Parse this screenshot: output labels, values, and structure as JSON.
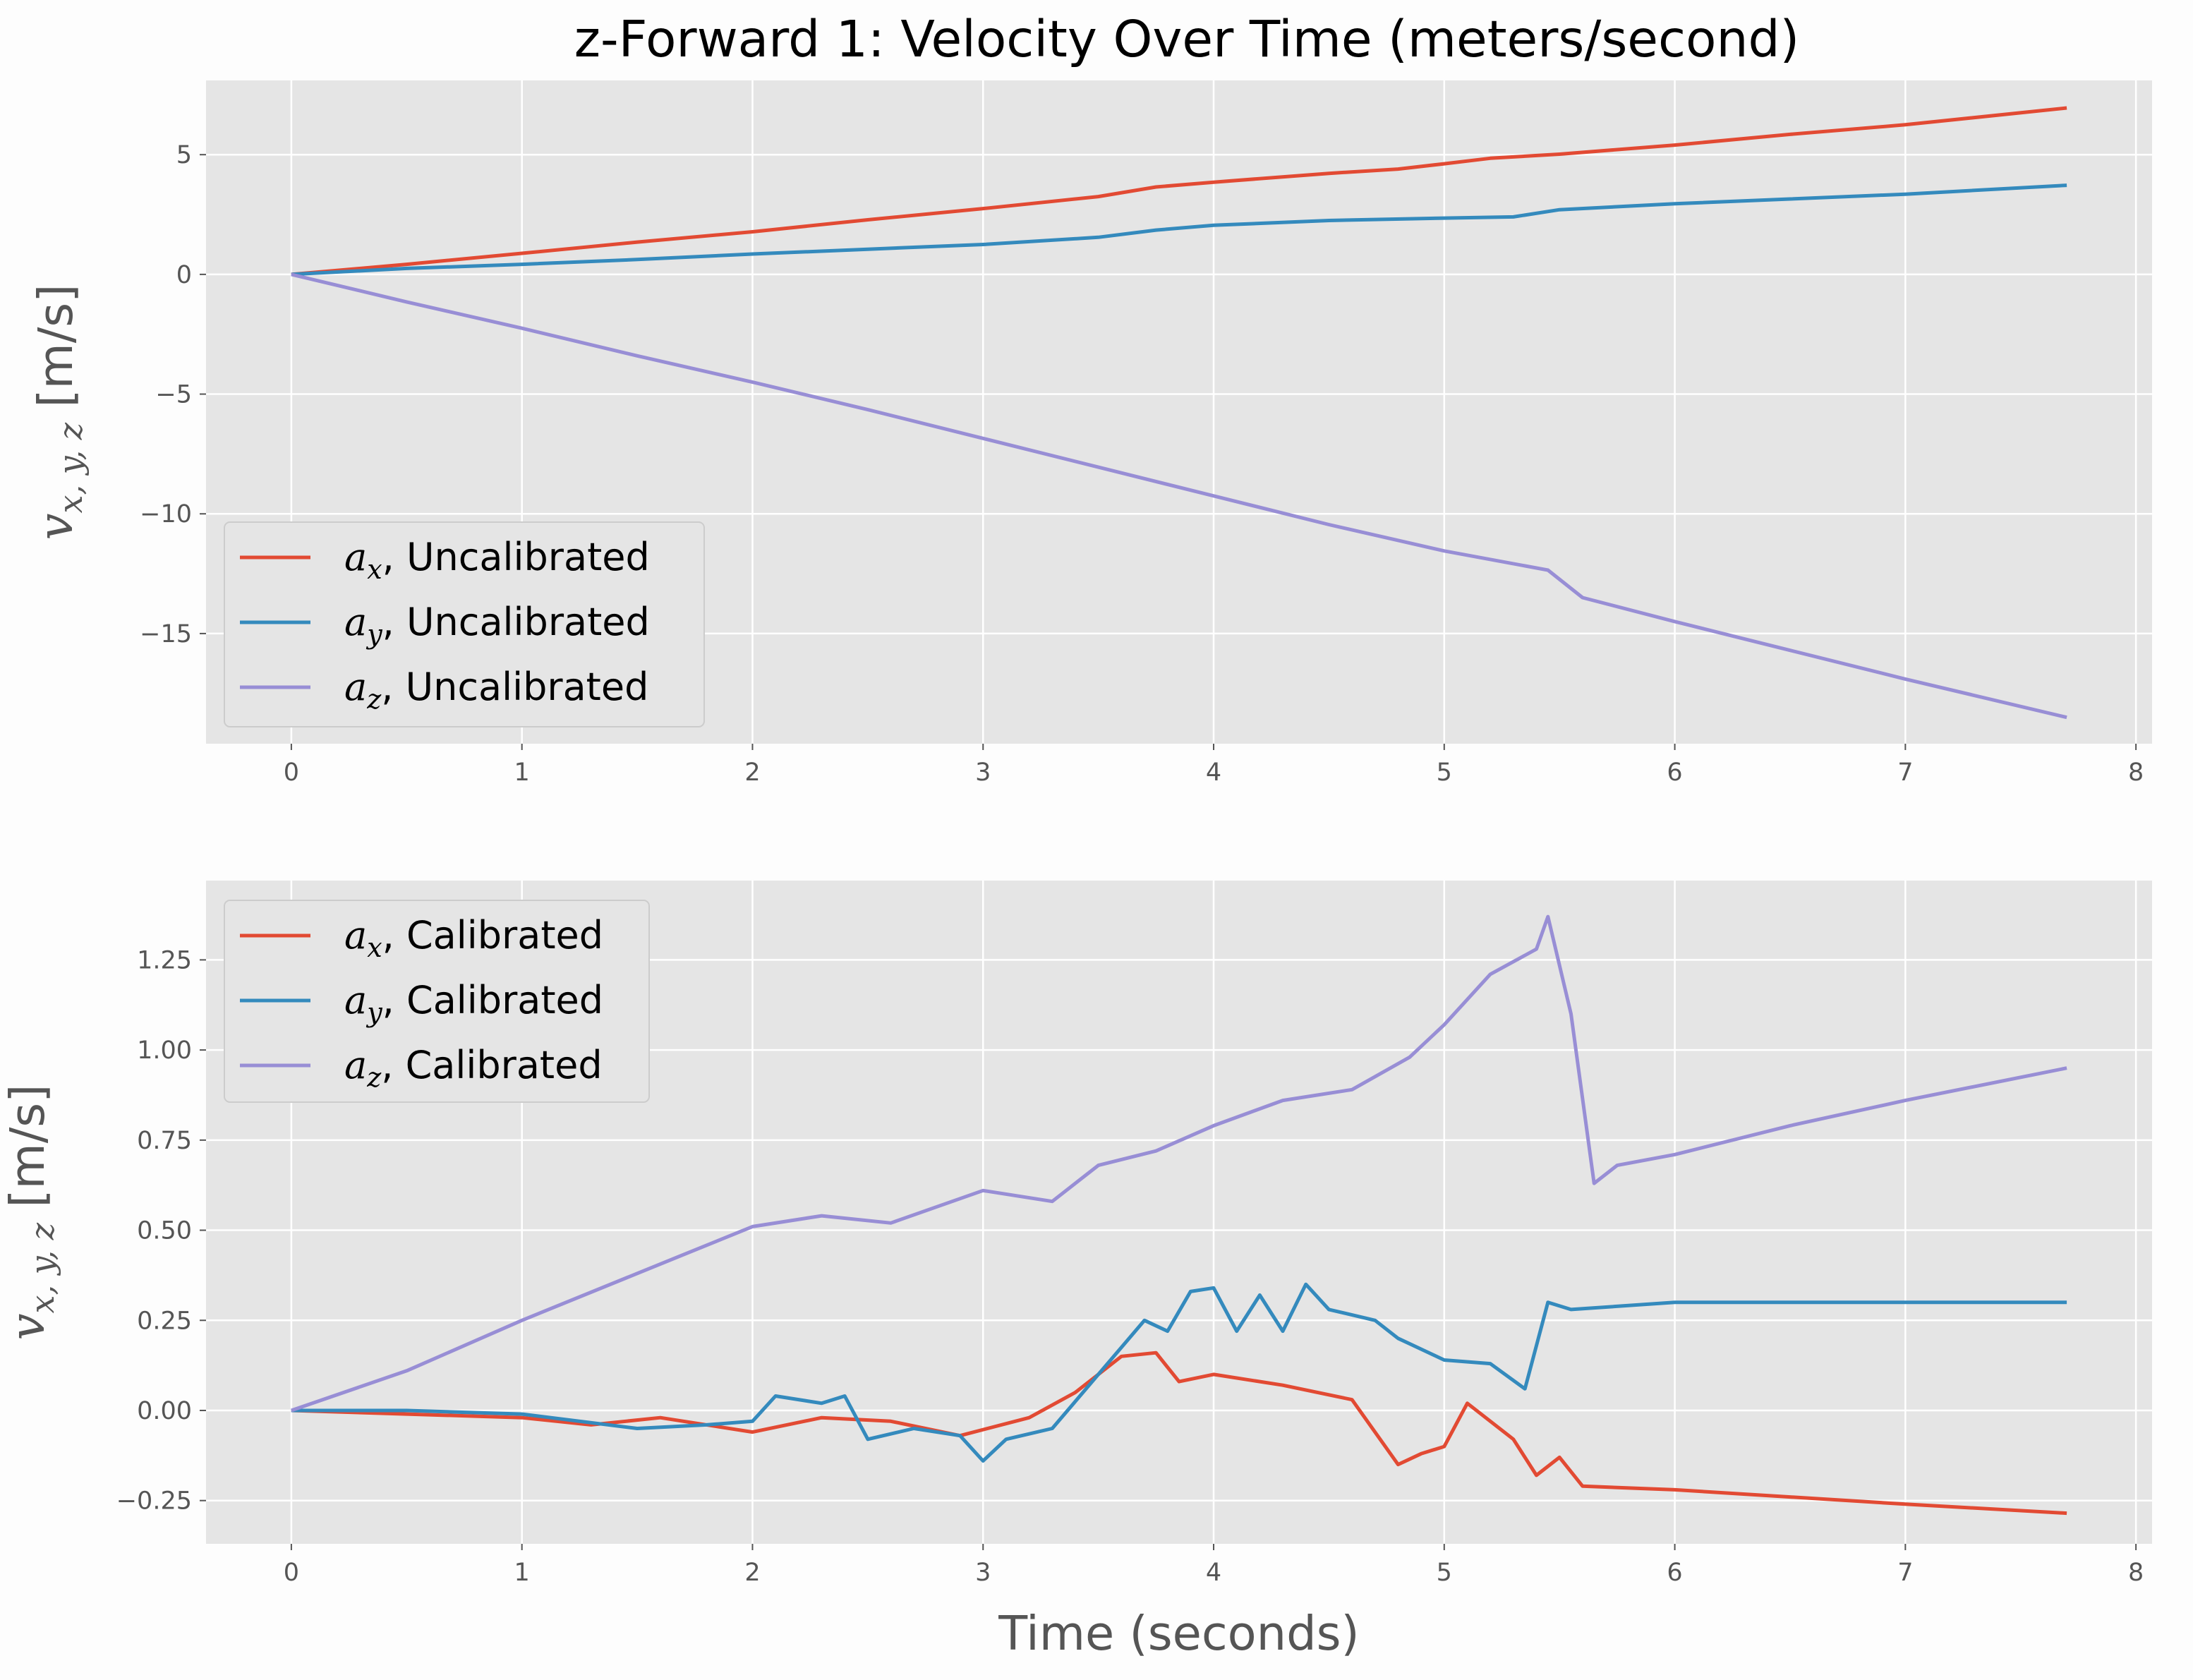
{
  "figure": {
    "title": "z-Forward 1: Velocity Over Time (meters/second)",
    "background": "#fdfdfd",
    "panel_background": "#e5e5e5",
    "grid_color": "#ffffff"
  },
  "chart_data": [
    {
      "type": "line",
      "title": "z-Forward 1: Velocity Over Time (meters/second)",
      "xlabel": "",
      "ylabel": {
        "main": "v",
        "sub": "x, y, z",
        "unit": " [m/s]"
      },
      "xlim": [
        -0.37,
        8.07
      ],
      "ylim": [
        -19.6,
        8.1
      ],
      "xticks": [
        0,
        1,
        2,
        3,
        4,
        5,
        6,
        7,
        8
      ],
      "yticks": [
        5,
        0,
        -5,
        -10,
        -15
      ],
      "ytick_labels": [
        "5",
        "0",
        "−5",
        "−10",
        "−15"
      ],
      "grid": true,
      "legend_position": "lower-left",
      "series": [
        {
          "name_main": "a",
          "name_sub": "x",
          "name_rest": ", Uncalibrated",
          "color": "#e24a33",
          "points": [
            [
              0,
              0
            ],
            [
              0.5,
              0.42
            ],
            [
              1,
              0.88
            ],
            [
              1.5,
              1.35
            ],
            [
              2,
              1.78
            ],
            [
              2.5,
              2.28
            ],
            [
              3,
              2.75
            ],
            [
              3.5,
              3.25
            ],
            [
              3.75,
              3.65
            ],
            [
              4,
              3.85
            ],
            [
              4.5,
              4.22
            ],
            [
              4.8,
              4.4
            ],
            [
              5,
              4.62
            ],
            [
              5.2,
              4.85
            ],
            [
              5.5,
              5.02
            ],
            [
              6,
              5.4
            ],
            [
              6.5,
              5.85
            ],
            [
              7,
              6.25
            ],
            [
              7.7,
              6.95
            ]
          ]
        },
        {
          "name_main": "a",
          "name_sub": "y",
          "name_rest": ", Uncalibrated",
          "color": "#348abd",
          "points": [
            [
              0,
              0
            ],
            [
              0.5,
              0.25
            ],
            [
              1,
              0.42
            ],
            [
              1.5,
              0.62
            ],
            [
              2,
              0.85
            ],
            [
              2.5,
              1.05
            ],
            [
              3,
              1.25
            ],
            [
              3.5,
              1.55
            ],
            [
              3.75,
              1.85
            ],
            [
              4,
              2.05
            ],
            [
              4.5,
              2.25
            ],
            [
              5,
              2.35
            ],
            [
              5.3,
              2.4
            ],
            [
              5.5,
              2.7
            ],
            [
              6,
              2.95
            ],
            [
              6.5,
              3.15
            ],
            [
              7,
              3.35
            ],
            [
              7.7,
              3.72
            ]
          ]
        },
        {
          "name_main": "a",
          "name_sub": "z",
          "name_rest": ", Uncalibrated",
          "color": "#988ed5",
          "points": [
            [
              0,
              0
            ],
            [
              0.5,
              -1.15
            ],
            [
              1,
              -2.25
            ],
            [
              1.5,
              -3.4
            ],
            [
              2,
              -4.5
            ],
            [
              2.5,
              -5.65
            ],
            [
              3,
              -6.85
            ],
            [
              3.5,
              -8.05
            ],
            [
              4,
              -9.25
            ],
            [
              4.5,
              -10.45
            ],
            [
              5,
              -11.55
            ],
            [
              5.45,
              -12.35
            ],
            [
              5.6,
              -13.5
            ],
            [
              6,
              -14.5
            ],
            [
              6.5,
              -15.7
            ],
            [
              7,
              -16.9
            ],
            [
              7.7,
              -18.5
            ]
          ]
        }
      ]
    },
    {
      "type": "line",
      "xlabel": "Time (seconds)",
      "ylabel": {
        "main": "v",
        "sub": "x, y, z",
        "unit": " [m/s]"
      },
      "xlim": [
        -0.37,
        8.07
      ],
      "ylim": [
        -0.37,
        1.47
      ],
      "xticks": [
        0,
        1,
        2,
        3,
        4,
        5,
        6,
        7,
        8
      ],
      "yticks": [
        1.25,
        1.0,
        0.75,
        0.5,
        0.25,
        0.0,
        -0.25
      ],
      "ytick_labels": [
        "1.25",
        "1.00",
        "0.75",
        "0.50",
        "0.25",
        "0.00",
        "−0.25"
      ],
      "grid": true,
      "legend_position": "upper-left",
      "series": [
        {
          "name_main": "a",
          "name_sub": "x",
          "name_rest": ", Calibrated",
          "color": "#e24a33",
          "points": [
            [
              0,
              0
            ],
            [
              0.5,
              -0.01
            ],
            [
              1,
              -0.02
            ],
            [
              1.3,
              -0.04
            ],
            [
              1.6,
              -0.02
            ],
            [
              2,
              -0.06
            ],
            [
              2.3,
              -0.02
            ],
            [
              2.6,
              -0.03
            ],
            [
              2.9,
              -0.07
            ],
            [
              3.2,
              -0.02
            ],
            [
              3.4,
              0.05
            ],
            [
              3.6,
              0.15
            ],
            [
              3.75,
              0.16
            ],
            [
              3.85,
              0.08
            ],
            [
              4,
              0.1
            ],
            [
              4.3,
              0.07
            ],
            [
              4.6,
              0.03
            ],
            [
              4.8,
              -0.15
            ],
            [
              4.9,
              -0.12
            ],
            [
              5,
              -0.1
            ],
            [
              5.1,
              0.02
            ],
            [
              5.3,
              -0.08
            ],
            [
              5.4,
              -0.18
            ],
            [
              5.5,
              -0.13
            ],
            [
              5.6,
              -0.21
            ],
            [
              6,
              -0.22
            ],
            [
              6.5,
              -0.24
            ],
            [
              7,
              -0.26
            ],
            [
              7.7,
              -0.285
            ]
          ]
        },
        {
          "name_main": "a",
          "name_sub": "y",
          "name_rest": ", Calibrated",
          "color": "#348abd",
          "points": [
            [
              0,
              0
            ],
            [
              0.5,
              0
            ],
            [
              1,
              -0.01
            ],
            [
              1.5,
              -0.05
            ],
            [
              1.8,
              -0.04
            ],
            [
              2,
              -0.03
            ],
            [
              2.1,
              0.04
            ],
            [
              2.3,
              0.02
            ],
            [
              2.4,
              0.04
            ],
            [
              2.5,
              -0.08
            ],
            [
              2.7,
              -0.05
            ],
            [
              2.9,
              -0.07
            ],
            [
              3,
              -0.14
            ],
            [
              3.1,
              -0.08
            ],
            [
              3.3,
              -0.05
            ],
            [
              3.5,
              0.1
            ],
            [
              3.7,
              0.25
            ],
            [
              3.8,
              0.22
            ],
            [
              3.9,
              0.33
            ],
            [
              4,
              0.34
            ],
            [
              4.1,
              0.22
            ],
            [
              4.2,
              0.32
            ],
            [
              4.3,
              0.22
            ],
            [
              4.4,
              0.35
            ],
            [
              4.5,
              0.28
            ],
            [
              4.7,
              0.25
            ],
            [
              4.8,
              0.2
            ],
            [
              4.9,
              0.17
            ],
            [
              5,
              0.14
            ],
            [
              5.2,
              0.13
            ],
            [
              5.35,
              0.06
            ],
            [
              5.45,
              0.3
            ],
            [
              5.55,
              0.28
            ],
            [
              6,
              0.3
            ],
            [
              6.5,
              0.3
            ],
            [
              7,
              0.3
            ],
            [
              7.7,
              0.3
            ]
          ]
        },
        {
          "name_main": "a",
          "name_sub": "z",
          "name_rest": ", Calibrated",
          "color": "#988ed5",
          "points": [
            [
              0,
              0
            ],
            [
              0.5,
              0.11
            ],
            [
              1,
              0.25
            ],
            [
              1.5,
              0.38
            ],
            [
              2,
              0.51
            ],
            [
              2.3,
              0.54
            ],
            [
              2.6,
              0.52
            ],
            [
              3,
              0.61
            ],
            [
              3.3,
              0.58
            ],
            [
              3.5,
              0.68
            ],
            [
              3.75,
              0.72
            ],
            [
              4,
              0.79
            ],
            [
              4.3,
              0.86
            ],
            [
              4.6,
              0.89
            ],
            [
              4.85,
              0.98
            ],
            [
              5,
              1.07
            ],
            [
              5.2,
              1.21
            ],
            [
              5.4,
              1.28
            ],
            [
              5.45,
              1.37
            ],
            [
              5.55,
              1.1
            ],
            [
              5.65,
              0.63
            ],
            [
              5.75,
              0.68
            ],
            [
              6,
              0.71
            ],
            [
              6.5,
              0.79
            ],
            [
              7,
              0.86
            ],
            [
              7.7,
              0.95
            ]
          ]
        }
      ]
    }
  ]
}
